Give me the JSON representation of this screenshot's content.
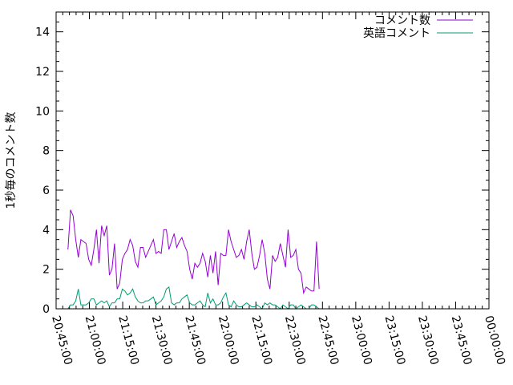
{
  "chart_data": {
    "type": "line",
    "ylabel": "1秒毎のコメント数",
    "ylim": [
      0,
      15
    ],
    "xlim": [
      "20:45:00",
      "00:00:00"
    ],
    "yticks": [
      0,
      2,
      4,
      6,
      8,
      10,
      12,
      14
    ],
    "xticks": [
      "20:45:00",
      "21:00:00",
      "21:15:00",
      "21:30:00",
      "21:45:00",
      "22:00:00",
      "22:15:00",
      "22:30:00",
      "22:45:00",
      "23:00:00",
      "23:15:00",
      "23:30:00",
      "23:45:00",
      "00:00:00"
    ],
    "grid": false,
    "legend_position": "top-right",
    "series": [
      {
        "name": "コメント数",
        "color": "#9400d3",
        "x": [
          "20:50:20",
          "20:51:30",
          "20:52:40",
          "20:53:50",
          "20:55:00",
          "20:56:10",
          "20:57:20",
          "20:58:30",
          "20:59:40",
          "21:00:50",
          "21:02:00",
          "21:03:10",
          "21:04:20",
          "21:05:30",
          "21:06:40",
          "21:07:50",
          "21:09:00",
          "21:10:10",
          "21:11:20",
          "21:12:30",
          "21:13:40",
          "21:14:50",
          "21:16:00",
          "21:17:10",
          "21:18:20",
          "21:19:30",
          "21:20:40",
          "21:21:50",
          "21:23:00",
          "21:24:10",
          "21:25:20",
          "21:26:30",
          "21:27:40",
          "21:28:50",
          "21:30:00",
          "21:31:10",
          "21:32:20",
          "21:33:30",
          "21:34:40",
          "21:35:50",
          "21:37:00",
          "21:38:10",
          "21:39:20",
          "21:40:30",
          "21:41:40",
          "21:42:50",
          "21:44:00",
          "21:45:10",
          "21:46:20",
          "21:47:30",
          "21:48:40",
          "21:49:50",
          "21:51:00",
          "21:52:10",
          "21:53:20",
          "21:54:30",
          "21:55:40",
          "21:56:50",
          "21:58:00",
          "21:59:10",
          "22:00:20",
          "22:01:30",
          "22:02:40",
          "22:03:50",
          "22:05:00",
          "22:06:10",
          "22:07:20",
          "22:08:30",
          "22:09:40",
          "22:10:50",
          "22:12:00",
          "22:13:10",
          "22:14:20",
          "22:15:30",
          "22:16:40",
          "22:17:50",
          "22:19:00",
          "22:20:10",
          "22:21:20",
          "22:22:30",
          "22:23:40",
          "22:24:50",
          "22:26:00",
          "22:27:10",
          "22:28:20",
          "22:29:30",
          "22:30:40",
          "22:31:50",
          "22:33:00",
          "22:34:10",
          "22:35:20",
          "22:36:30",
          "22:37:40",
          "22:38:50",
          "22:40:00",
          "22:41:10",
          "22:42:20",
          "22:43:30",
          "22:44:40",
          "22:45:50",
          "22:47:00",
          "22:48:10",
          "22:49:20",
          "22:50:30",
          "22:51:40",
          "22:52:50",
          "22:54:00",
          "22:55:10",
          "22:56:20",
          "22:57:30",
          "22:58:40",
          "22:59:50",
          "23:01:00",
          "23:02:10",
          "23:03:20",
          "23:04:30",
          "23:05:40",
          "23:06:50",
          "23:08:00",
          "23:09:10",
          "23:10:20",
          "23:11:30",
          "23:12:40",
          "23:13:50",
          "23:15:00",
          "23:16:10",
          "23:17:20",
          "23:18:30",
          "23:19:40",
          "23:20:50",
          "23:22:00",
          "23:23:10",
          "23:24:20",
          "23:25:30",
          "23:26:40",
          "23:27:50",
          "23:29:00",
          "23:30:10",
          "23:31:20",
          "23:32:30",
          "23:33:40",
          "23:34:50",
          "23:36:00",
          "23:37:10",
          "23:38:20",
          "23:39:30",
          "23:40:40",
          "23:41:50",
          "23:43:00",
          "23:44:10",
          "23:45:20",
          "23:46:30",
          "23:47:40",
          "23:48:50",
          "23:50:00",
          "23:51:10",
          "23:52:20",
          "23:53:30",
          "23:54:40",
          "23:55:50",
          "23:57:00",
          "23:58:10",
          "23:59:20"
        ],
        "y": [
          3.0,
          5.0,
          4.7,
          3.5,
          2.6,
          3.5,
          3.4,
          3.3,
          2.5,
          2.2,
          3.0,
          4.0,
          2.3,
          4.2,
          3.7,
          4.2,
          1.7,
          2.0,
          3.3,
          1.0,
          1.3,
          2.5,
          2.8,
          3.0,
          3.5,
          3.2,
          2.4,
          2.1,
          3.1,
          3.1,
          2.6,
          2.9,
          3.2,
          3.5,
          2.8,
          2.9,
          2.8,
          4.0,
          4.0,
          3.0,
          3.4,
          3.8,
          3.1,
          3.4,
          3.6,
          3.2,
          2.9,
          2.0,
          1.5,
          2.3,
          2.1,
          2.3,
          2.8,
          2.4,
          1.6,
          2.7,
          1.8,
          2.9,
          1.2,
          2.8,
          2.7,
          2.7,
          4.0,
          3.4,
          3.0,
          2.6,
          2.7,
          3.0,
          2.5,
          3.4,
          4.0,
          2.8,
          2.0,
          2.1,
          2.7,
          3.5,
          2.8,
          1.5,
          1.0,
          2.7,
          2.4,
          2.6,
          3.3,
          2.7,
          2.1,
          4.0,
          2.6,
          2.7,
          3.0,
          2.0,
          1.8,
          0.8,
          1.1,
          1.0,
          0.9,
          0.9,
          3.4,
          1.0,
          null,
          null,
          null,
          null,
          null,
          null,
          null,
          null,
          null,
          null,
          null,
          null,
          null,
          null,
          null,
          null,
          null,
          null,
          null,
          null,
          null,
          null,
          null,
          null,
          null,
          null,
          null,
          null,
          null,
          null,
          null,
          null,
          null,
          null,
          null,
          null,
          null,
          null,
          null,
          null,
          null,
          null,
          null,
          null,
          null,
          null,
          null,
          null,
          null,
          null,
          null,
          null,
          null,
          null,
          null,
          null,
          null,
          null,
          null,
          null,
          null,
          null,
          null,
          null,
          null
        ]
      },
      {
        "name": "英語コメント",
        "color": "#009e73",
        "x": [
          "20:50:20",
          "20:51:30",
          "20:52:40",
          "20:53:50",
          "20:55:00",
          "20:56:10",
          "20:57:20",
          "20:58:30",
          "20:59:40",
          "21:00:50",
          "21:02:00",
          "21:03:10",
          "21:04:20",
          "21:05:30",
          "21:06:40",
          "21:07:50",
          "21:09:00",
          "21:10:10",
          "21:11:20",
          "21:12:30",
          "21:13:40",
          "21:14:50",
          "21:16:00",
          "21:17:10",
          "21:18:20",
          "21:19:30",
          "21:20:40",
          "21:21:50",
          "21:23:00",
          "21:24:10",
          "21:25:20",
          "21:26:30",
          "21:27:40",
          "21:28:50",
          "21:30:00",
          "21:31:10",
          "21:32:20",
          "21:33:30",
          "21:34:40",
          "21:35:50",
          "21:37:00",
          "21:38:10",
          "21:39:20",
          "21:40:30",
          "21:41:40",
          "21:42:50",
          "21:44:00",
          "21:45:10",
          "21:46:20",
          "21:47:30",
          "21:48:40",
          "21:49:50",
          "21:51:00",
          "21:52:10",
          "21:53:20",
          "21:54:30",
          "21:55:40",
          "21:56:50",
          "21:58:00",
          "21:59:10",
          "22:00:20",
          "22:01:30",
          "22:02:40",
          "22:03:50",
          "22:05:00",
          "22:06:10",
          "22:07:20",
          "22:08:30",
          "22:09:40",
          "22:10:50",
          "22:12:00",
          "22:13:10",
          "22:14:20",
          "22:15:30",
          "22:16:40",
          "22:17:50",
          "22:19:00",
          "22:20:10",
          "22:21:20",
          "22:22:30",
          "22:23:40",
          "22:24:50",
          "22:26:00",
          "22:27:10",
          "22:28:20",
          "22:29:30",
          "22:30:40",
          "22:31:50",
          "22:33:00",
          "22:34:10",
          "22:35:20",
          "22:36:30",
          "22:37:40",
          "22:38:50",
          "22:40:00",
          "22:41:10",
          "22:42:20",
          "22:43:30",
          "22:44:40",
          "22:45:50",
          "22:47:00",
          "22:48:10",
          "22:49:20",
          "22:50:30",
          "22:51:40",
          "22:52:50",
          "22:54:00",
          "22:55:10",
          "22:56:20",
          "22:57:30",
          "22:58:40",
          "22:59:50",
          "23:01:00",
          "23:02:10",
          "23:03:20",
          "23:04:30",
          "23:05:40",
          "23:06:50",
          "23:08:00",
          "23:09:10",
          "23:10:20",
          "23:11:30",
          "23:12:40",
          "23:13:50",
          "23:15:00",
          "23:16:10",
          "23:17:20",
          "23:18:30",
          "23:19:40",
          "23:20:50",
          "23:22:00",
          "23:23:10",
          "23:24:20",
          "23:25:30",
          "23:26:40",
          "23:27:50",
          "23:29:00",
          "23:30:10",
          "23:31:20",
          "23:32:30",
          "23:33:40",
          "23:34:50",
          "23:36:00",
          "23:37:10",
          "23:38:20",
          "23:39:30",
          "23:40:40",
          "23:41:50",
          "23:43:00",
          "23:44:10",
          "23:45:20",
          "23:46:30",
          "23:47:40",
          "23:48:50",
          "23:50:00",
          "23:51:10",
          "23:52:20",
          "23:53:30",
          "23:54:40",
          "23:55:50",
          "23:57:00",
          "23:58:10",
          "23:59:20"
        ],
        "y": [
          0.0,
          0.2,
          0.2,
          0.4,
          1.0,
          0.2,
          0.2,
          0.2,
          0.3,
          0.5,
          0.5,
          0.2,
          0.3,
          0.4,
          0.3,
          0.4,
          0.1,
          0.3,
          0.3,
          0.5,
          0.5,
          1.0,
          0.9,
          0.7,
          0.8,
          1.0,
          0.6,
          0.4,
          0.3,
          0.3,
          0.4,
          0.4,
          0.5,
          0.6,
          0.2,
          0.3,
          0.4,
          0.6,
          1.0,
          1.1,
          0.3,
          0.2,
          0.3,
          0.3,
          0.5,
          0.6,
          0.7,
          0.3,
          0.2,
          0.2,
          0.3,
          0.4,
          0.2,
          0.1,
          0.8,
          0.3,
          0.5,
          0.2,
          0.2,
          0.3,
          0.6,
          0.8,
          0.2,
          0.1,
          0.4,
          0.2,
          0.1,
          0.1,
          0.2,
          0.3,
          0.2,
          0.1,
          0.1,
          0.2,
          0.1,
          0.0,
          0.3,
          0.2,
          0.3,
          0.2,
          0.2,
          0.1,
          0.0,
          0.2,
          0.1,
          0.0,
          0.2,
          0.2,
          0.0,
          0.1,
          0.2,
          0.1,
          0.0,
          0.0,
          0.2,
          0.2,
          0.1,
          0.0,
          null,
          null,
          null,
          null,
          null,
          null,
          null,
          null,
          null,
          null,
          null,
          null,
          null,
          null,
          null,
          null,
          null,
          null,
          null,
          null,
          null,
          null,
          null,
          null,
          null,
          null,
          null,
          null,
          null,
          null,
          null,
          null,
          null,
          null,
          null,
          null,
          null,
          null,
          null,
          null,
          null,
          null,
          null,
          null,
          null,
          null,
          null,
          null,
          null,
          null,
          null,
          null,
          null,
          null,
          null,
          null,
          null,
          null,
          null,
          null,
          null,
          null,
          null,
          null,
          null
        ]
      }
    ]
  }
}
